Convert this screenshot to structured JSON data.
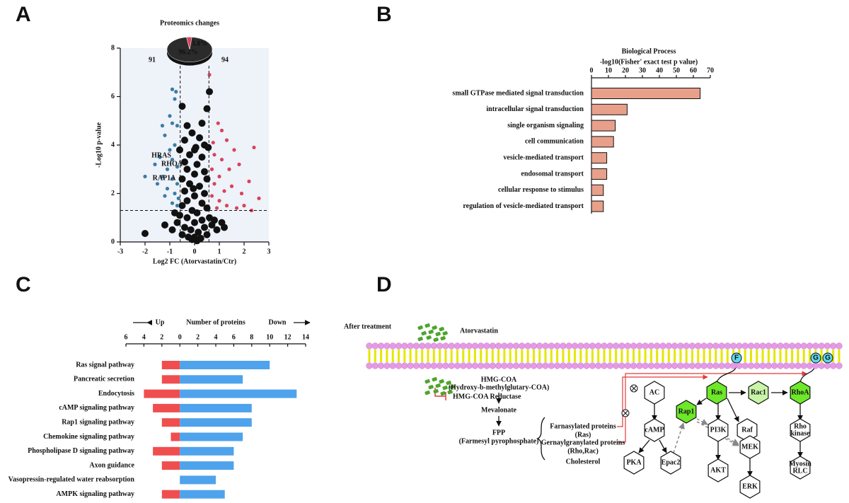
{
  "chart_data": [
    {
      "label": "A",
      "type": "scatter",
      "title": "Proteomics changes",
      "xlabel": "Log2 FC (Atorvastatin/Ctr)",
      "ylabel": "-Log10 p-value",
      "xlim": [
        -3,
        3
      ],
      "xticks": [
        -3,
        -2,
        -1,
        0,
        1,
        2,
        3
      ],
      "ylim": [
        0,
        8
      ],
      "yticks": [
        0,
        2,
        4,
        6,
        8
      ],
      "thresholds": {
        "x": [
          -0.58,
          0.58
        ],
        "y": 1.3
      },
      "series": [
        {
          "color": "#3b7ca4",
          "x": [
            -0.9,
            -0.75,
            -0.8,
            -1.0,
            -0.9,
            -1.3,
            -0.7,
            -1.2,
            -0.8,
            -1.0,
            -1.4,
            -0.9,
            -1.6,
            -1.1,
            -0.7,
            -2.0,
            -1.3,
            -0.9,
            -0.7,
            -1.1,
            -0.8,
            -1.2,
            -0.65,
            -0.9,
            -0.7,
            -1.5
          ],
          "values": [
            6.3,
            6.2,
            5.9,
            5.2,
            4.9,
            4.8,
            4.8,
            4.4,
            4.0,
            3.8,
            3.5,
            3.4,
            3.2,
            3.0,
            3.1,
            2.7,
            2.7,
            2.6,
            2.4,
            2.2,
            2.0,
            1.9,
            1.8,
            1.6,
            1.5,
            2.4
          ]
        },
        {
          "color": "#d9435a",
          "x": [
            0.6,
            0.95,
            1.3,
            1.6,
            2.4,
            0.8,
            1.1,
            1.8,
            0.7,
            1.4,
            1.0,
            2.2,
            0.8,
            1.5,
            1.2,
            1.9,
            2.6,
            0.7,
            1.0,
            2.0,
            1.3,
            1.7,
            2.3,
            0.9,
            1.1,
            0.75
          ],
          "values": [
            6.9,
            4.9,
            4.2,
            3.8,
            3.9,
            3.6,
            3.4,
            3.2,
            3.0,
            3.0,
            2.7,
            2.5,
            2.4,
            2.3,
            2.1,
            2.0,
            1.8,
            1.9,
            1.7,
            1.5,
            1.5,
            1.4,
            1.3,
            1.4,
            4.6,
            4.1
          ]
        },
        {
          "color": "#111111",
          "x": [
            -2.0,
            0.6,
            0.5,
            -0.5,
            -0.3,
            0.3,
            -0.1,
            0.2,
            -0.4,
            0.4,
            0,
            -0.2,
            0.3,
            -0.4,
            0.1,
            -0.3,
            0.4,
            0,
            -0.5,
            0.5,
            -0.2,
            0.2,
            -0.4,
            0.4,
            0,
            -0.3,
            0.3,
            -0.5,
            0.5,
            -0.1,
            0.1,
            -0.6,
            0.6,
            -0.3,
            0.3,
            0,
            -0.7,
            0.7,
            -0.4,
            0.4,
            -0.15,
            0.15,
            -0.9,
            0.9,
            -0.5,
            0.5,
            0,
            -0.25,
            0.25,
            -1.2,
            1.2,
            -0.1,
            0.1,
            0.05,
            -0.05,
            -0.6,
            0.55,
            0.8,
            -0.8,
            1.1
          ],
          "values": [
            0.35,
            6.2,
            5.5,
            5.6,
            4.8,
            4.9,
            4.5,
            4.3,
            4.2,
            4.0,
            3.8,
            3.6,
            3.5,
            3.3,
            3.2,
            3.0,
            2.9,
            2.8,
            2.6,
            2.6,
            2.4,
            2.3,
            2.1,
            2.0,
            1.9,
            1.7,
            1.6,
            1.5,
            1.4,
            1.3,
            1.2,
            1.1,
            1.0,
            1.0,
            0.9,
            0.8,
            0.8,
            0.7,
            0.6,
            0.6,
            0.5,
            0.4,
            0.5,
            0.5,
            0.3,
            0.3,
            0.2,
            0.2,
            0.15,
            0.7,
            0.6,
            0.1,
            0.05,
            3.9,
            2.2,
            3.8,
            3.9,
            0.9,
            1.2,
            0.8
          ]
        }
      ],
      "pie": {
        "values": [
          96.2,
          3.8
        ],
        "value_labels": [
          "96.2%",
          "3.8%"
        ],
        "colors": [
          "#2b2b2b",
          "#d9435a"
        ]
      },
      "annotations": [
        "91",
        "94",
        "HRAS",
        "RHOA",
        "RAP1A"
      ]
    },
    {
      "label": "B",
      "type": "bar",
      "orientation": "horizontal",
      "title": "Biological Process",
      "xlabel": "-log10(Fisher' exact test p value)",
      "categories": [
        "small GTPase mediated signal transduction",
        "intracellular signal transduction",
        "single organism signaling",
        "cell communication",
        "vesicle-mediated transport",
        "endosomal transport",
        "cellular response to stimulus",
        "regulation of vesicle-mediated transport"
      ],
      "values": [
        64,
        21,
        14,
        13,
        9,
        9,
        7,
        7
      ],
      "color": "#e8a08a",
      "xlim": [
        0,
        70
      ],
      "xticks": [
        0,
        10,
        20,
        30,
        40,
        50,
        60,
        70
      ]
    },
    {
      "label": "C",
      "type": "diverging_bar",
      "title": "Number of proteins",
      "categories": [
        "Ras signal pathway",
        "Pancreatic secretion",
        "Endocytosis",
        "cAMP signaling pathway",
        "Rap1 signaling pathway",
        "Chemokine signaling pathway",
        "Phospholipase D signaling pathway",
        "Axon guidance",
        "Vasopressin-regulated water reabsorption",
        "AMPK signaling pathway"
      ],
      "series": [
        {
          "name": "Up",
          "color": "#f04e4e",
          "values": [
            2,
            2,
            4,
            3,
            2,
            1,
            3,
            2,
            0,
            2
          ]
        },
        {
          "name": "Down",
          "color": "#4ea3ec",
          "values": [
            10,
            7,
            13,
            8,
            8,
            7,
            6,
            6,
            4,
            5
          ]
        }
      ],
      "xlim": [
        -6,
        14
      ],
      "xticks": [
        {
          "value": -6,
          "label": "6"
        },
        {
          "value": -4,
          "label": "4"
        },
        {
          "value": -2,
          "label": "2"
        },
        0,
        2,
        4,
        6,
        8,
        10,
        12,
        14
      ]
    }
  ],
  "diagram": {
    "label": "D",
    "texts": {
      "after": "After treatment",
      "drug": "Atorvastatin",
      "hmg": "HMG-COA",
      "hmg_full": "(Hydroxy-b-methylglutary-COA)",
      "reductase": "HMG-COA Reductase",
      "mevalonate": "Mevalonate",
      "fpp": "FPP",
      "fpp_full": "(Farmesyl pyrophosphate)",
      "farn": "Farnasylated proteins",
      "farn_sub": "(Ras)",
      "gern": "Gernaylgranylated proteins",
      "gern_sub": "(Rho,Rac)",
      "chol": "Cholesterol"
    },
    "nodes": [
      "AC",
      "cAMP",
      "PKA",
      "Epac2",
      "Rap1",
      "Ras",
      "PI3K",
      "AKT",
      "Raf",
      "MEK",
      "ERK",
      "Rac1",
      "RhoA",
      [
        "Rho",
        "kinase"
      ],
      [
        "Myosin",
        "RLC"
      ]
    ],
    "anchors": [
      "F",
      "G",
      "G"
    ]
  }
}
